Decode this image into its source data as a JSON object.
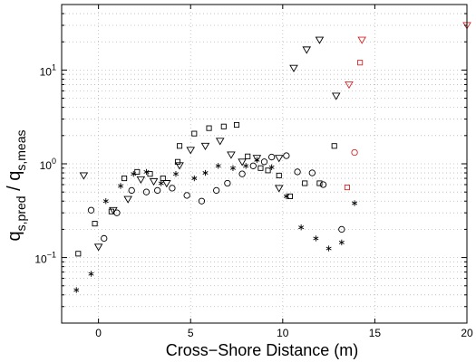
{
  "chart_data": {
    "type": "scatter",
    "xlabel": "Cross−Shore Distance (m)",
    "ylabel": {
      "main": "q",
      "main_sub": "s,pred",
      "separator": " / ",
      "denom": "q",
      "denom_sub": "s,meas"
    },
    "xlim": [
      -2,
      20
    ],
    "ylim": [
      0.02,
      50
    ],
    "yscale": "log",
    "grid": true,
    "x_ticks": [
      0,
      5,
      10,
      15,
      20
    ],
    "x_tick_labels": [
      "0",
      "5",
      "10",
      "15",
      "20"
    ],
    "y_ticks": [
      0.1,
      1,
      10
    ],
    "y_tick_labels": [
      {
        "base": "10",
        "exp": "−1"
      },
      {
        "base": "10",
        "exp": "0"
      },
      {
        "base": "10",
        "exp": "1"
      }
    ],
    "colors": {
      "default": "#000000",
      "highlight": "#d62728"
    },
    "series": [
      {
        "marker": "circle",
        "points": [
          {
            "x": -0.4,
            "y": 0.32
          },
          {
            "x": 0.3,
            "y": 0.16
          },
          {
            "x": 1.0,
            "y": 0.3
          },
          {
            "x": 1.8,
            "y": 0.52
          },
          {
            "x": 2.6,
            "y": 0.5
          },
          {
            "x": 3.2,
            "y": 0.52
          },
          {
            "x": 4.0,
            "y": 0.55
          },
          {
            "x": 4.8,
            "y": 0.46
          },
          {
            "x": 5.6,
            "y": 0.4
          },
          {
            "x": 6.4,
            "y": 0.52
          },
          {
            "x": 7.0,
            "y": 0.62
          },
          {
            "x": 7.8,
            "y": 0.78
          },
          {
            "x": 8.4,
            "y": 0.95
          },
          {
            "x": 9.0,
            "y": 1.05
          },
          {
            "x": 9.4,
            "y": 1.18
          },
          {
            "x": 10.2,
            "y": 1.22
          },
          {
            "x": 10.8,
            "y": 0.82
          },
          {
            "x": 11.6,
            "y": 0.8
          },
          {
            "x": 12.2,
            "y": 0.6
          },
          {
            "x": 13.2,
            "y": 0.2
          }
        ]
      },
      {
        "marker": "circle",
        "highlight": true,
        "points": [
          {
            "x": 13.9,
            "y": 1.32
          }
        ]
      },
      {
        "marker": "square",
        "points": [
          {
            "x": -1.1,
            "y": 0.11
          },
          {
            "x": -0.2,
            "y": 0.23
          },
          {
            "x": 0.7,
            "y": 0.31
          },
          {
            "x": 1.4,
            "y": 0.7
          },
          {
            "x": 2.1,
            "y": 0.82
          },
          {
            "x": 2.8,
            "y": 0.78
          },
          {
            "x": 3.5,
            "y": 0.7
          },
          {
            "x": 4.3,
            "y": 1.05
          },
          {
            "x": 4.4,
            "y": 1.55
          },
          {
            "x": 5.2,
            "y": 2.1
          },
          {
            "x": 6.0,
            "y": 2.4
          },
          {
            "x": 6.8,
            "y": 2.5
          },
          {
            "x": 7.5,
            "y": 2.6
          },
          {
            "x": 8.1,
            "y": 1.2
          },
          {
            "x": 8.8,
            "y": 0.9
          },
          {
            "x": 9.2,
            "y": 0.85
          },
          {
            "x": 9.8,
            "y": 0.75
          },
          {
            "x": 10.4,
            "y": 0.45
          },
          {
            "x": 11.2,
            "y": 0.62
          },
          {
            "x": 12.0,
            "y": 0.62
          },
          {
            "x": 12.8,
            "y": 1.55
          }
        ]
      },
      {
        "marker": "square",
        "highlight": true,
        "points": [
          {
            "x": 13.5,
            "y": 0.56
          },
          {
            "x": 14.2,
            "y": 12.0
          }
        ]
      },
      {
        "marker": "triangle-down",
        "points": [
          {
            "x": -0.8,
            "y": 0.75
          },
          {
            "x": 0.0,
            "y": 0.13
          },
          {
            "x": 0.8,
            "y": 0.32
          },
          {
            "x": 1.6,
            "y": 0.42
          },
          {
            "x": 2.3,
            "y": 0.68
          },
          {
            "x": 3.0,
            "y": 0.65
          },
          {
            "x": 3.7,
            "y": 0.62
          },
          {
            "x": 4.4,
            "y": 0.96
          },
          {
            "x": 5.0,
            "y": 1.4
          },
          {
            "x": 5.8,
            "y": 1.55
          },
          {
            "x": 6.6,
            "y": 1.75
          },
          {
            "x": 7.2,
            "y": 1.25
          },
          {
            "x": 7.8,
            "y": 1.05
          },
          {
            "x": 8.6,
            "y": 1.15
          },
          {
            "x": 9.8,
            "y": 1.15
          },
          {
            "x": 9.8,
            "y": 0.55
          },
          {
            "x": 10.6,
            "y": 10.5
          },
          {
            "x": 11.3,
            "y": 16.5
          },
          {
            "x": 12.0,
            "y": 21.0
          },
          {
            "x": 12.9,
            "y": 5.3
          }
        ]
      },
      {
        "marker": "triangle-down",
        "highlight": true,
        "points": [
          {
            "x": 13.6,
            "y": 7.0
          },
          {
            "x": 14.3,
            "y": 21.0
          },
          {
            "x": 20.0,
            "y": 30.0
          }
        ]
      },
      {
        "marker": "asterisk",
        "points": [
          {
            "x": -1.2,
            "y": 0.045
          },
          {
            "x": -0.4,
            "y": 0.067
          },
          {
            "x": 0.4,
            "y": 0.4
          },
          {
            "x": 1.2,
            "y": 0.58
          },
          {
            "x": 1.9,
            "y": 0.78
          },
          {
            "x": 2.6,
            "y": 0.82
          },
          {
            "x": 3.4,
            "y": 0.62
          },
          {
            "x": 4.2,
            "y": 0.78
          },
          {
            "x": 5.2,
            "y": 0.7
          },
          {
            "x": 5.8,
            "y": 0.8
          },
          {
            "x": 6.5,
            "y": 0.95
          },
          {
            "x": 7.3,
            "y": 0.9
          },
          {
            "x": 8.0,
            "y": 0.95
          },
          {
            "x": 8.6,
            "y": 1.1
          },
          {
            "x": 9.4,
            "y": 0.92
          },
          {
            "x": 10.2,
            "y": 0.45
          },
          {
            "x": 11.0,
            "y": 0.21
          },
          {
            "x": 11.8,
            "y": 0.16
          },
          {
            "x": 12.5,
            "y": 0.125
          },
          {
            "x": 13.2,
            "y": 0.145
          },
          {
            "x": 13.9,
            "y": 0.38
          }
        ]
      }
    ]
  }
}
